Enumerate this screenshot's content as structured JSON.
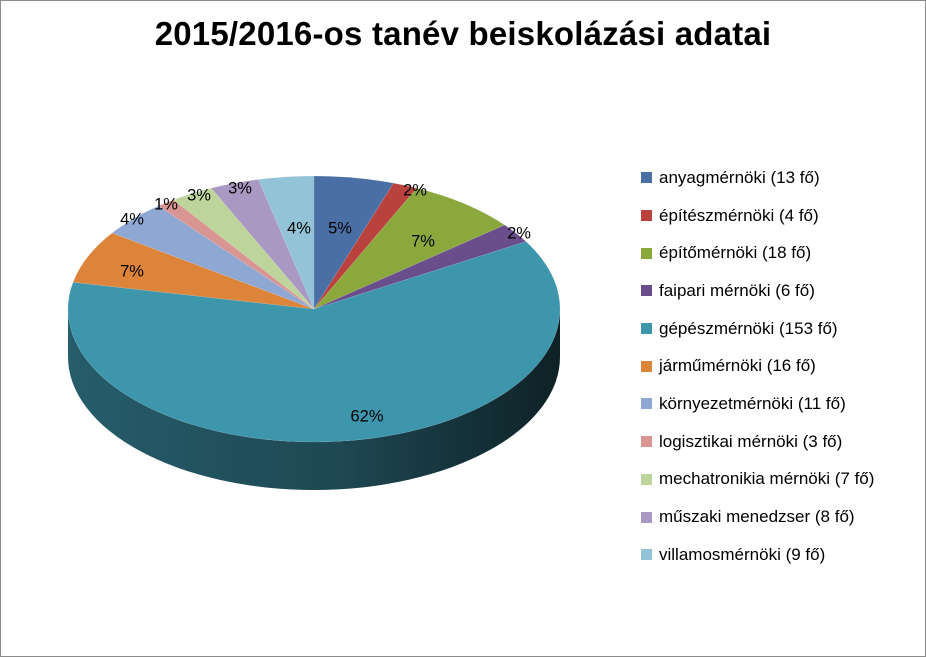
{
  "chart_data": {
    "type": "pie",
    "title": "2015/2016-os tanév beiskolázási adatai",
    "legend_position": "right",
    "three_d": true,
    "slices": [
      {
        "label": "anyagmérnöki (13 fő)",
        "value": 13,
        "percent_label": "5%",
        "color": "#4a6fa5"
      },
      {
        "label": "építészmérnöki (4 fő)",
        "value": 4,
        "percent_label": "2%",
        "color": "#b9423f"
      },
      {
        "label": "építőmérnöki (18 fő)",
        "value": 18,
        "percent_label": "7%",
        "color": "#8aa83c"
      },
      {
        "label": "faipari mérnöki (6 fő)",
        "value": 6,
        "percent_label": "2%",
        "color": "#6a4e8c"
      },
      {
        "label": "gépészmérnöki (153 fő)",
        "value": 153,
        "percent_label": "62%",
        "color": "#3e96ad"
      },
      {
        "label": "járműmérnöki (16 fő)",
        "value": 16,
        "percent_label": "7%",
        "color": "#dd843b"
      },
      {
        "label": "környezetmérnöki (11 fő)",
        "value": 11,
        "percent_label": "4%",
        "color": "#8fa7d3"
      },
      {
        "label": "logisztikai mérnöki (3 fő)",
        "value": 3,
        "percent_label": "1%",
        "color": "#d99592"
      },
      {
        "label": "mechatronikia mérnöki (7 fő)",
        "value": 7,
        "percent_label": "3%",
        "color": "#bdd49a"
      },
      {
        "label": "műszaki menedzser (8 fő)",
        "value": 8,
        "percent_label": "3%",
        "color": "#a898c2"
      },
      {
        "label": "villamosmérnöki (9 fő)",
        "value": 9,
        "percent_label": "4%",
        "color": "#92c3d6"
      }
    ]
  }
}
